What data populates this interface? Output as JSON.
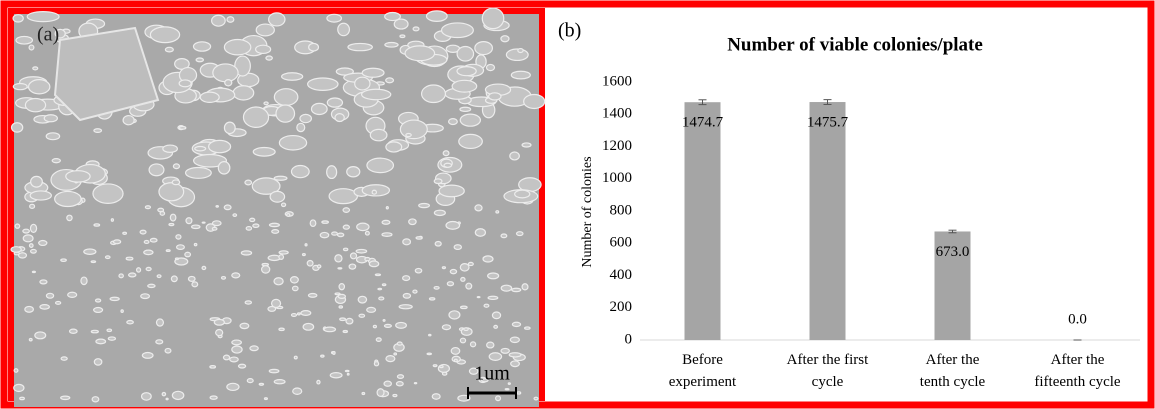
{
  "image_panel": {
    "label": "(a)",
    "scale_bar": "1um"
  },
  "chart_panel_label": "(b)",
  "chart_data": {
    "type": "bar",
    "title": "Number of viable colonies/plate",
    "ylabel": "Number of colonies",
    "categories": [
      "Before\nexperiment",
      "After the first\ncycle",
      "After the\ntenth cycle",
      "After the\nfifteenth cycle"
    ],
    "values": [
      1474.7,
      1475.7,
      673.0,
      0.0
    ],
    "value_labels": [
      "1474.7",
      "1475.7",
      "673.0",
      "0.0"
    ],
    "errors": [
      15,
      15,
      8,
      0
    ],
    "color": "#a5a5a5",
    "ylim": [
      0,
      1600
    ],
    "yticks": [
      0,
      200,
      400,
      600,
      800,
      1000,
      1200,
      1400,
      1600
    ],
    "grid": false
  }
}
